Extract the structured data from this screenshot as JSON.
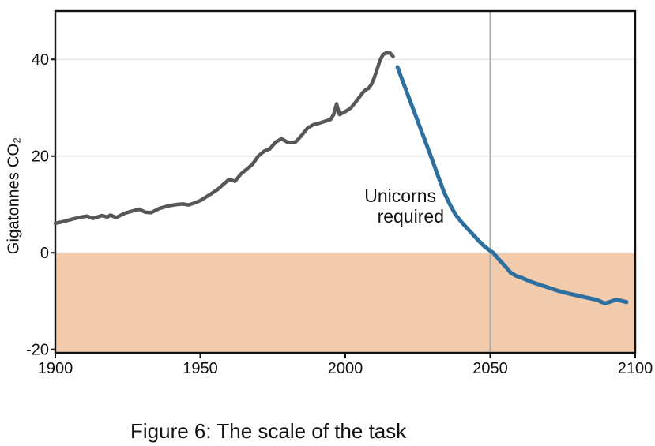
{
  "figure": {
    "caption": "Figure 6: The scale of the task"
  },
  "chart_data": {
    "type": "line",
    "title": "",
    "xlabel": "",
    "ylabel": "Gigatonnes CO₂",
    "xlim": [
      1900,
      2100
    ],
    "ylim": [
      -20.7,
      50.0
    ],
    "x_ticks": [
      1900,
      1950,
      2000,
      2050,
      2100
    ],
    "y_ticks": [
      40,
      20,
      0,
      -20
    ],
    "gridlines_y": [
      40,
      20,
      0
    ],
    "grid": true,
    "legend": "none",
    "grid_color": "#e8e8e8",
    "frame_color": "#111111",
    "background_color": "#ffffff",
    "vline": {
      "x": 2050,
      "color": "#a9a9a9"
    },
    "shaded_region": {
      "from": 0,
      "to": -20.7,
      "color": "#f2cbad"
    },
    "annotation": {
      "line1": "Unicorns",
      "line2": "required"
    },
    "series": [
      {
        "name": "historical-emissions",
        "color": "#57575a",
        "width": 4.5,
        "points": [
          [
            1900,
            6.1
          ],
          [
            1903,
            6.5
          ],
          [
            1906,
            7.0
          ],
          [
            1909,
            7.4
          ],
          [
            1911,
            7.6
          ],
          [
            1913,
            7.1
          ],
          [
            1916,
            7.7
          ],
          [
            1918,
            7.4
          ],
          [
            1919,
            7.8
          ],
          [
            1921,
            7.3
          ],
          [
            1924,
            8.2
          ],
          [
            1927,
            8.7
          ],
          [
            1929,
            9.0
          ],
          [
            1931,
            8.4
          ],
          [
            1933,
            8.3
          ],
          [
            1936,
            9.2
          ],
          [
            1939,
            9.7
          ],
          [
            1942,
            10.0
          ],
          [
            1944,
            10.1
          ],
          [
            1946,
            9.9
          ],
          [
            1948,
            10.3
          ],
          [
            1950,
            10.8
          ],
          [
            1953,
            11.9
          ],
          [
            1956,
            13.1
          ],
          [
            1958,
            14.2
          ],
          [
            1960,
            15.2
          ],
          [
            1962,
            14.8
          ],
          [
            1964,
            16.3
          ],
          [
            1966,
            17.3
          ],
          [
            1968,
            18.3
          ],
          [
            1970,
            20.0
          ],
          [
            1972,
            21.0
          ],
          [
            1974,
            21.5
          ],
          [
            1976,
            22.9
          ],
          [
            1978,
            23.6
          ],
          [
            1980,
            22.9
          ],
          [
            1982,
            22.8
          ],
          [
            1983,
            23.0
          ],
          [
            1985,
            24.3
          ],
          [
            1987,
            25.8
          ],
          [
            1989,
            26.5
          ],
          [
            1991,
            26.8
          ],
          [
            1993,
            27.2
          ],
          [
            1995,
            27.6
          ],
          [
            1996,
            28.6
          ],
          [
            1997,
            30.8
          ],
          [
            1998,
            28.6
          ],
          [
            2000,
            29.2
          ],
          [
            2002,
            30.0
          ],
          [
            2004,
            31.5
          ],
          [
            2006,
            33.1
          ],
          [
            2007,
            33.7
          ],
          [
            2008,
            34.0
          ],
          [
            2009,
            34.8
          ],
          [
            2010,
            36.2
          ],
          [
            2011,
            38.0
          ],
          [
            2012,
            39.8
          ],
          [
            2013,
            41.0
          ],
          [
            2014,
            41.3
          ],
          [
            2015.5,
            41.3
          ],
          [
            2016.5,
            40.6
          ]
        ]
      },
      {
        "name": "required-pathway",
        "color": "#2d6f9e",
        "width": 5,
        "points": [
          [
            2018,
            38.4
          ],
          [
            2019,
            36.8
          ],
          [
            2020,
            35.2
          ],
          [
            2022,
            32.0
          ],
          [
            2024,
            28.8
          ],
          [
            2026,
            25.6
          ],
          [
            2028,
            22.4
          ],
          [
            2030,
            19.2
          ],
          [
            2032,
            15.9
          ],
          [
            2033,
            14.3
          ],
          [
            2034,
            12.6
          ],
          [
            2036,
            10.1
          ],
          [
            2038,
            7.9
          ],
          [
            2040,
            6.4
          ],
          [
            2042,
            5.1
          ],
          [
            2044,
            3.8
          ],
          [
            2046,
            2.5
          ],
          [
            2048,
            1.3
          ],
          [
            2050,
            0.4
          ],
          [
            2051,
            0.0
          ],
          [
            2053,
            -1.4
          ],
          [
            2055,
            -2.7
          ],
          [
            2057,
            -4.1
          ],
          [
            2059,
            -4.8
          ],
          [
            2061,
            -5.2
          ],
          [
            2064,
            -6.0
          ],
          [
            2067,
            -6.6
          ],
          [
            2070,
            -7.2
          ],
          [
            2073,
            -7.8
          ],
          [
            2076,
            -8.3
          ],
          [
            2079,
            -8.7
          ],
          [
            2082,
            -9.1
          ],
          [
            2085,
            -9.5
          ],
          [
            2087,
            -9.8
          ],
          [
            2089.5,
            -10.5
          ],
          [
            2093.5,
            -9.7
          ],
          [
            2095,
            -9.9
          ],
          [
            2097,
            -10.2
          ]
        ]
      }
    ]
  }
}
